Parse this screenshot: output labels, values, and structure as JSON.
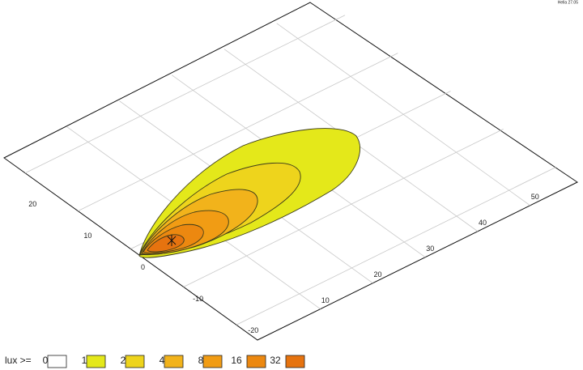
{
  "header": {
    "note": "Hella 27.05"
  },
  "chart_data": {
    "type": "contour",
    "xlim": [
      -2,
      59
    ],
    "xticks": [
      10,
      20,
      30,
      40,
      50
    ],
    "ylim": [
      -24,
      24
    ],
    "yticks": [
      -20,
      -10,
      0,
      10,
      20
    ],
    "grid": true,
    "legend_title": "lux >=",
    "levels": [
      0,
      1,
      2,
      4,
      8,
      16,
      32
    ],
    "colors": [
      "#ffffff",
      "#e4e81a",
      "#eed41c",
      "#f2b31b",
      "#f19c14",
      "#ec8810",
      "#e6730f"
    ]
  }
}
